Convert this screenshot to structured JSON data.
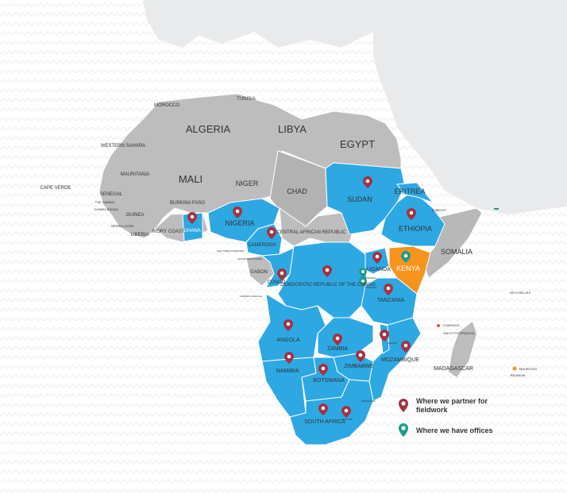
{
  "colors": {
    "ocean_pattern": "#eef0f3",
    "land_grey": "#bdbdbd",
    "land_dark": "#a8a8a8",
    "partner_blue": "#2da8e3",
    "office_orange": "#f7941d",
    "border": "#ffffff",
    "pin_red": "#a3323f",
    "pin_teal": "#1e9b8a"
  },
  "map": {
    "labels": {
      "tunisia": "TUNISIA",
      "morocco": "MOROCCO",
      "algeria": "ALGERIA",
      "libya": "LIBYA",
      "egypt": "EGYPT",
      "western_sahara": "WESTERN SAHARA",
      "mauritania": "MAURITANIA",
      "mali": "MALI",
      "niger": "NIGER",
      "chad": "CHAD",
      "sudan": "SUDAN",
      "eritrea": "ERITREA",
      "djibouti": "DJIBOUTI",
      "ethiopia": "ETHIOPIA",
      "somalia": "SOMALIA",
      "cape_verde": "CAPE VERDE",
      "senegal": "SENEGAL",
      "the_gambia": "THE GAMBIA",
      "guinea_bissau": "GUINEA BISSAU",
      "guinea": "GUINEA",
      "sierra_leone": "SIERRA LEONE",
      "liberia": "LIBERIA",
      "burkina_faso": "BURKINA FASO",
      "ivory_coast": "IVORY COAST",
      "ghana": "GHANA",
      "nigeria": "NIGERIA",
      "cameroon": "CAMEROON",
      "car": "CENTRAL AFRICAN REPUBLIC",
      "uganda": "UGANDA",
      "kenya": "KENYA",
      "sao_tome": "SAO TOME & PRINCIPE",
      "equatorial_guinea": "EQUATORIAL GUINEA",
      "gabon": "GABON",
      "congo": "CONGO",
      "drc": "DEMOCRATIC REPUBLIC OF THE CONGO",
      "rwanda": "RWANDA",
      "burundi": "BURUNDI",
      "tanzania": "TANZANIA",
      "cabinda": "CABINDA (ANGOLA)",
      "seychelles": "SEYCHELLES",
      "comoros": "COMOROS",
      "mayotte": "MAYOTTE (FRANCE)",
      "angola": "ANGOLA",
      "zambia": "ZAMBIA",
      "malawi": "MALAWI",
      "mozambique": "MOZAMBIQUE",
      "madagascar": "MADAGASCAR",
      "mauritius": "MAURITIUS",
      "reunion": "REUNION",
      "namibia": "NAMIBIA",
      "zimbabwe": "ZIMBABWE",
      "botswana": "BOTSWANA",
      "swaziland": "SWAZILAND",
      "south_africa": "SOUTH AFRICA",
      "lesotho": "LESOTHO"
    }
  },
  "legend": {
    "partner_label": "Where we partner for fieldwork",
    "offices_label": "Where we have offices"
  }
}
